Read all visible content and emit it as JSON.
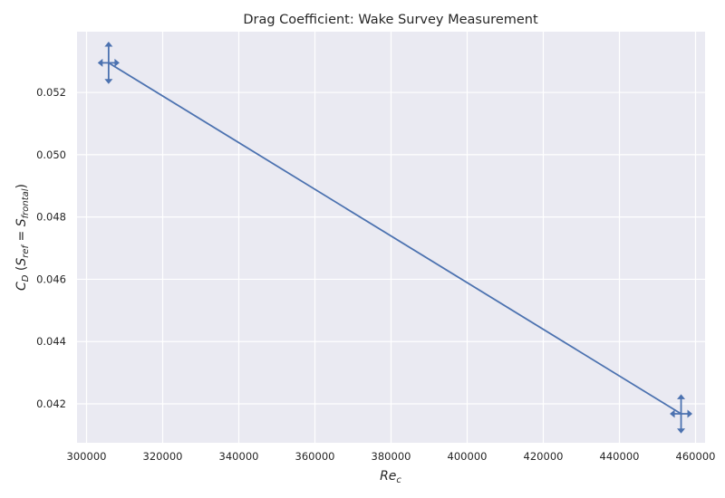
{
  "chart_data": {
    "type": "line",
    "title": "Drag Coefficient: Wake Survey Measurement",
    "xlabel": {
      "base": "Re",
      "sub": "c"
    },
    "ylabel": {
      "pre": "C",
      "pre_sub": "D",
      "open": " (",
      "s1": "S",
      "s1_sub": "ref",
      "eq": " = ",
      "s2": "S",
      "s2_sub": "frontal",
      "close": ")"
    },
    "xlim": [
      297500,
      462500
    ],
    "ylim": [
      0.04075,
      0.05395
    ],
    "xticks": [
      300000,
      320000,
      340000,
      360000,
      380000,
      400000,
      420000,
      440000,
      460000
    ],
    "yticks": [
      0.042,
      0.044,
      0.046,
      0.048,
      0.05,
      0.052
    ],
    "grid": true,
    "colors": {
      "background": "#eaeaf2",
      "grid": "#ffffff",
      "series": "#4c72b0",
      "text": "#262626"
    },
    "series": [
      {
        "x": [
          305800,
          456200
        ],
        "y": [
          0.05295,
          0.04168
        ],
        "xerr": [
          1800,
          1900
        ],
        "yerr": [
          0.00055,
          0.0005
        ]
      }
    ]
  }
}
